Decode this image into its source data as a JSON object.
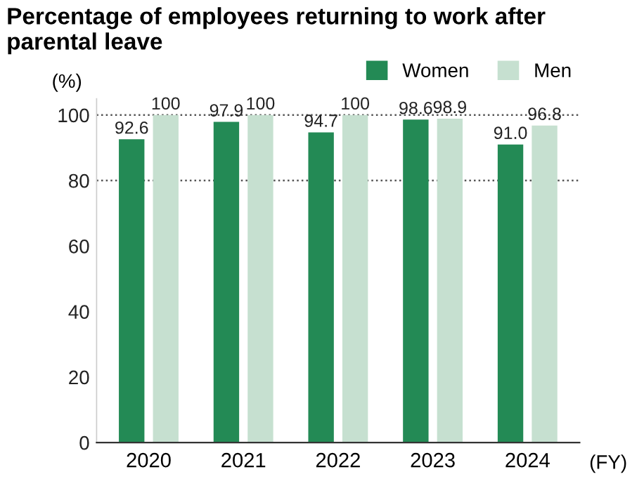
{
  "chart_data": {
    "type": "bar",
    "title": "Percentage of employees returning to work after parental leave",
    "ylabel": "(%)",
    "xlabel": "(FY)",
    "categories": [
      "2020",
      "2021",
      "2022",
      "2023",
      "2024"
    ],
    "series": [
      {
        "name": "Women",
        "color": "#238a55",
        "values": [
          92.6,
          97.9,
          94.7,
          98.6,
          91.0
        ],
        "value_labels": [
          "92.6",
          "97.9",
          "94.7",
          "98.6",
          "91.0"
        ]
      },
      {
        "name": "Men",
        "color": "#c6e0d0",
        "values": [
          100,
          100,
          100,
          98.9,
          96.8
        ],
        "value_labels": [
          "100",
          "100",
          "100",
          "98.9",
          "96.8"
        ]
      }
    ],
    "ylim": [
      0,
      105
    ],
    "yticks": [
      0,
      20,
      40,
      60,
      80,
      100
    ],
    "ref_lines": [
      {
        "axis": "y",
        "value": 80,
        "color": "#555555",
        "line_style": "dotted"
      },
      {
        "axis": "y",
        "value": 100,
        "color": "#555555",
        "line_style": "dotted"
      }
    ],
    "legend": "top right"
  }
}
